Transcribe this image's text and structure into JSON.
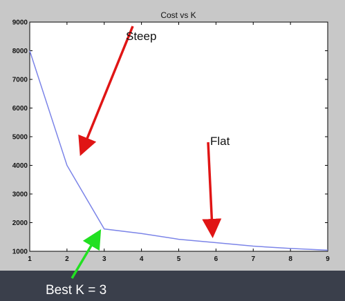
{
  "chart_data": {
    "type": "line",
    "title": "Cost vs K",
    "xlabel": "",
    "ylabel": "",
    "x": [
      1,
      2,
      3,
      4,
      5,
      6,
      7,
      8,
      9
    ],
    "x_ticks": [
      "1",
      "2",
      "3",
      "4",
      "5",
      "6",
      "7",
      "8",
      "9"
    ],
    "y_ticks": [
      "1000",
      "2000",
      "3000",
      "4000",
      "5000",
      "6000",
      "7000",
      "8000",
      "9000"
    ],
    "series": [
      {
        "values": [
          8000,
          4000,
          1780,
          1620,
          1420,
          1300,
          1180,
          1100,
          1040
        ],
        "color": "#7b84e8"
      }
    ],
    "xlim": [
      1,
      9
    ],
    "ylim": [
      1000,
      9000
    ],
    "grid": false,
    "annotations": {
      "steep": "Steep",
      "flat": "Flat",
      "best_k": "Best K = 3"
    },
    "arrow_colors": {
      "red": "#e01515",
      "green": "#22e022"
    }
  }
}
